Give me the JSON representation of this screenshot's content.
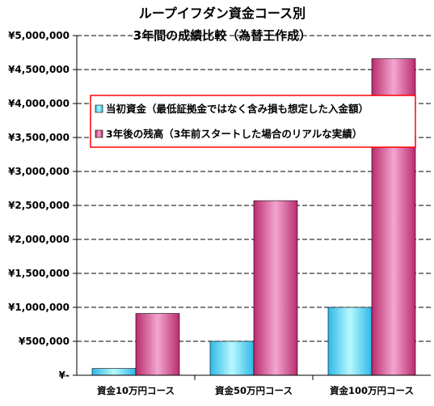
{
  "chart_data": {
    "type": "bar",
    "title": "ループイフダン資金コース別",
    "subtitle": "3年間の成績比較（為替王作成）",
    "categories": [
      "資金10万円コース",
      "資金50万円コース",
      "資金100万円コース"
    ],
    "series": [
      {
        "name": "当初資金（最低証拠金ではなく含み損も想定した入金額）",
        "color": "#33CCFF",
        "values": [
          100000,
          500000,
          1000000
        ]
      },
      {
        "name": "3年後の残高（3年前スタートした場合のリアルな実績）",
        "color": "#CC3377",
        "values": [
          910000,
          2570000,
          4660000
        ]
      }
    ],
    "ylim": [
      0,
      5000000
    ],
    "yticks": [
      {
        "value": 0,
        "label": "¥-"
      },
      {
        "value": 500000,
        "label": "¥500,000"
      },
      {
        "value": 1000000,
        "label": "¥1,000,000"
      },
      {
        "value": 1500000,
        "label": "¥1,500,000"
      },
      {
        "value": 2000000,
        "label": "¥2,000,000"
      },
      {
        "value": 2500000,
        "label": "¥2,500,000"
      },
      {
        "value": 3000000,
        "label": "¥3,000,000"
      },
      {
        "value": 3500000,
        "label": "¥3,500,000"
      },
      {
        "value": 4000000,
        "label": "¥4,000,000"
      },
      {
        "value": 4500000,
        "label": "¥4,500,000"
      },
      {
        "value": 5000000,
        "label": "¥5,000,000"
      }
    ],
    "grid": true,
    "legend_position": "upper-center",
    "legend_border_color": "#FF0000"
  }
}
